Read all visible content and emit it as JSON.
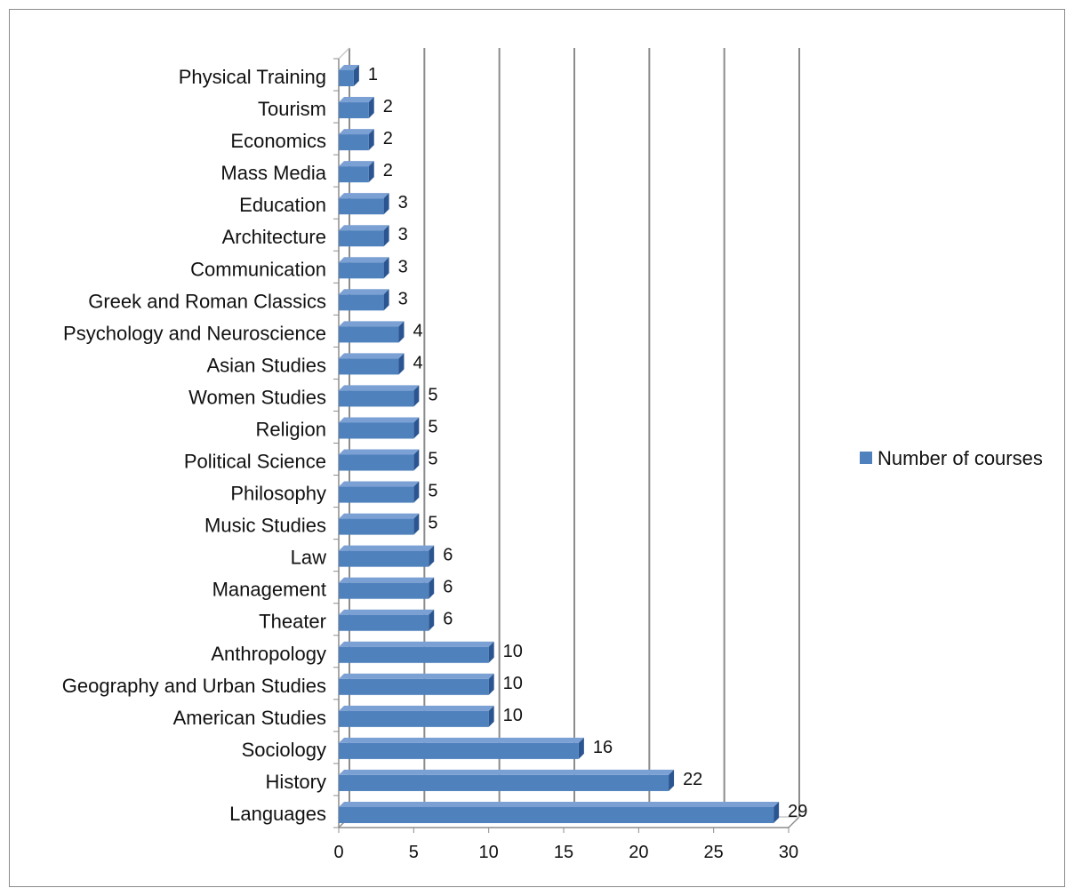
{
  "chart_data": {
    "type": "bar",
    "orientation": "horizontal",
    "style": "3d-bars",
    "categories": [
      "Languages",
      "History",
      "Sociology",
      "American Studies",
      "Geography and Urban Studies",
      "Anthropology",
      "Theater",
      "Management",
      "Law",
      "Music Studies",
      "Philosophy",
      "Political Science",
      "Religion",
      "Women Studies",
      "Asian Studies",
      "Psychology and Neuroscience",
      "Greek and Roman Classics",
      "Communication",
      "Architecture",
      "Education",
      "Mass Media",
      "Economics",
      "Tourism",
      "Physical Training"
    ],
    "series": [
      {
        "name": "Number of courses",
        "values": [
          29,
          22,
          16,
          10,
          10,
          10,
          6,
          6,
          6,
          5,
          5,
          5,
          5,
          5,
          4,
          4,
          3,
          3,
          3,
          3,
          2,
          2,
          2,
          1
        ]
      }
    ],
    "xlim": [
      0,
      30
    ],
    "xticks": [
      0,
      5,
      10,
      15,
      20,
      25,
      30
    ],
    "grid": "vertical-major",
    "legend": "right",
    "data_labels": true,
    "colors": {
      "bar_front": "#4f81bd",
      "bar_top": "#7ba0d4",
      "bar_side": "#2b5590",
      "grid": "#8c8c8c",
      "floor": "#c8c8c8"
    },
    "title": "",
    "xlabel": "",
    "ylabel": ""
  }
}
